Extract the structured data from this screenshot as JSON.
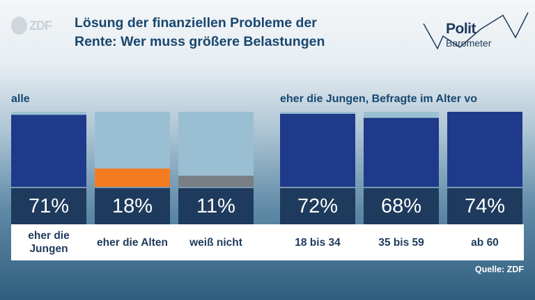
{
  "header": {
    "logo_text": "ZDF",
    "title_line1": "Lösung der finanziellen Probleme der",
    "title_line2": "Rente: Wer muss größere Belastungen",
    "brand_polit": "Polit",
    "brand_barometer": "Barometer"
  },
  "colors": {
    "bar_fill": "#1f3a8a",
    "bar_empty": "#9bbfd2",
    "bar_orange": "#f47c20",
    "bar_gray": "#7a7f85",
    "value_box": "#1e3a5c",
    "text_dark": "#1e3a5c"
  },
  "chart_data": [
    {
      "type": "bar",
      "group_label": "alle",
      "categories": [
        "eher die Jungen",
        "eher die Alten",
        "weiß nicht"
      ],
      "values": [
        71,
        18,
        11
      ],
      "value_labels": [
        "71%",
        "18%",
        "11%"
      ],
      "colors": [
        "#1f3a8a",
        "#f47c20",
        "#7a7f85"
      ],
      "ylim": [
        0,
        74
      ]
    },
    {
      "type": "bar",
      "group_label": "eher die Jungen, Befragte im Alter vo",
      "categories": [
        "18 bis 34",
        "35 bis 59",
        "ab 60"
      ],
      "values": [
        72,
        68,
        74
      ],
      "value_labels": [
        "72%",
        "68%",
        "74%"
      ],
      "colors": [
        "#1f3a8a",
        "#1f3a8a",
        "#1f3a8a"
      ],
      "ylim": [
        0,
        74
      ]
    }
  ],
  "footer": {
    "source": "Quelle: ZDF"
  }
}
